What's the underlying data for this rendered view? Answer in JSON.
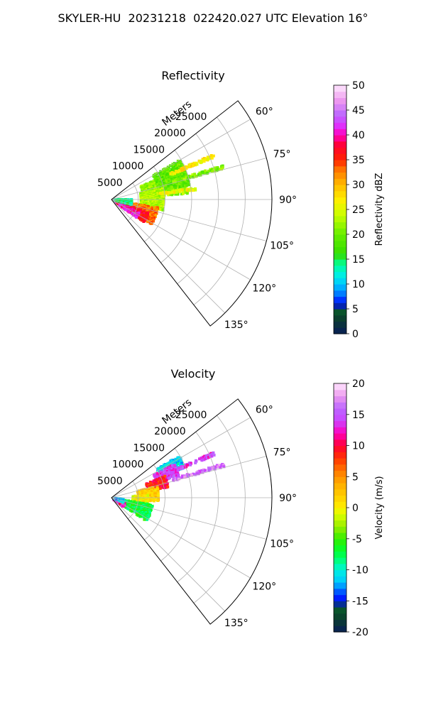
{
  "suptitle": "SKYLER-HU  20231218  022420.027 UTC Elevation 16°",
  "chart_data": [
    {
      "type": "polar-sector",
      "title": "Reflectivity",
      "range_label": "Meters",
      "range_ticks": [
        5000,
        10000,
        15000,
        20000,
        25000
      ],
      "range_max": 30000,
      "azimuth_ticks": [
        "60°",
        "75°",
        "90°",
        "105°",
        "120°",
        "135°"
      ],
      "azimuth_range_deg": [
        52,
        142
      ],
      "colorbar": {
        "label": "Reflectivity dBZ",
        "ticks": [
          0,
          5,
          10,
          15,
          20,
          25,
          30,
          35,
          40,
          45,
          50
        ],
        "vmin": 0,
        "vmax": 50
      },
      "echo_regions": [
        {
          "az": [
            66,
            86
          ],
          "range": [
            6000,
            14500
          ],
          "value": 22
        },
        {
          "az": [
            60,
            80
          ],
          "range": [
            9000,
            15000
          ],
          "value": 19
        },
        {
          "az": [
            78,
            102
          ],
          "range": [
            5500,
            10000
          ],
          "value": 23
        },
        {
          "az": [
            100,
            122
          ],
          "range": [
            2000,
            9000
          ],
          "value": 33
        },
        {
          "az": [
            110,
            125
          ],
          "range": [
            3000,
            7500
          ],
          "value": 37
        },
        {
          "az": [
            115,
            126
          ],
          "range": [
            1000,
            6000
          ],
          "value": 40
        },
        {
          "az": [
            90,
            105
          ],
          "range": [
            500,
            4000
          ],
          "value": 14
        },
        {
          "az": [
            66,
            68
          ],
          "range": [
            12000,
            21000
          ],
          "value": 27
        },
        {
          "az": [
            73,
            75
          ],
          "range": [
            12000,
            22000
          ],
          "value": 21
        },
        {
          "az": [
            82,
            84
          ],
          "range": [
            9000,
            16000
          ],
          "value": 26
        }
      ]
    },
    {
      "type": "polar-sector",
      "title": "Velocity",
      "range_label": "Meters",
      "range_ticks": [
        5000,
        10000,
        15000,
        20000,
        25000
      ],
      "range_max": 30000,
      "azimuth_ticks": [
        "60°",
        "75°",
        "90°",
        "105°",
        "120°",
        "135°"
      ],
      "azimuth_range_deg": [
        52,
        142
      ],
      "colorbar": {
        "label": "Velocity (m/s)",
        "ticks": [
          -20,
          -15,
          -10,
          -5,
          0,
          5,
          10,
          15,
          20
        ],
        "vmin": -20,
        "vmax": 20
      },
      "echo_regions": [
        {
          "az": [
            58,
            68
          ],
          "range": [
            10000,
            15000
          ],
          "value": -11
        },
        {
          "az": [
            62,
            72
          ],
          "range": [
            9000,
            13500
          ],
          "value": 14
        },
        {
          "az": [
            68,
            80
          ],
          "range": [
            7000,
            11000
          ],
          "value": 9
        },
        {
          "az": [
            76,
            95
          ],
          "range": [
            5000,
            9000
          ],
          "value": 2
        },
        {
          "az": [
            86,
            105
          ],
          "range": [
            4000,
            7000
          ],
          "value": 0
        },
        {
          "az": [
            100,
            124
          ],
          "range": [
            1500,
            8000
          ],
          "value": -7
        },
        {
          "az": [
            110,
            128
          ],
          "range": [
            500,
            3000
          ],
          "value": 12
        },
        {
          "az": [
            96,
            112
          ],
          "range": [
            400,
            2500
          ],
          "value": -12
        },
        {
          "az": [
            66,
            68
          ],
          "range": [
            12000,
            21000
          ],
          "value": 14
        },
        {
          "az": [
            73,
            75
          ],
          "range": [
            12000,
            22000
          ],
          "value": 16
        }
      ]
    }
  ]
}
